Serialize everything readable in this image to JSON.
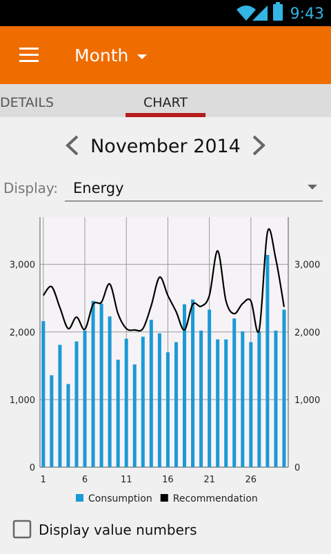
{
  "status_bar": {
    "time": "9:43"
  },
  "toolbar": {
    "title": "Month"
  },
  "tabs": [
    "DETAILS",
    "CHART"
  ],
  "period": "November 2014",
  "display": {
    "label": "Display:",
    "value": "Energy"
  },
  "checkbox": {
    "label": "Display value numbers"
  },
  "chart_data": {
    "type": "bar",
    "x": [
      1,
      2,
      3,
      4,
      5,
      6,
      7,
      8,
      9,
      10,
      11,
      12,
      13,
      14,
      15,
      16,
      17,
      18,
      19,
      20,
      21,
      22,
      23,
      24,
      25,
      26,
      27,
      28,
      29,
      30
    ],
    "series": [
      {
        "name": "Consumption",
        "type": "bar",
        "color": "#1a9ad6",
        "values": [
          2160,
          1360,
          1810,
          1230,
          1860,
          2020,
          2460,
          2420,
          2230,
          1590,
          1900,
          1520,
          1930,
          2180,
          1980,
          1700,
          1850,
          2410,
          2480,
          2020,
          2330,
          1890,
          1890,
          2200,
          2010,
          1850,
          2010,
          3140,
          2020,
          2330
        ]
      },
      {
        "name": "Recommendation",
        "type": "line",
        "color": "#000000",
        "values": [
          2540,
          2670,
          2360,
          2050,
          2220,
          2040,
          2410,
          2440,
          2710,
          2270,
          2050,
          2030,
          2050,
          2390,
          2810,
          2540,
          2300,
          2030,
          2410,
          2380,
          2540,
          3200,
          2460,
          2270,
          2420,
          2460,
          2030,
          3480,
          3080,
          2370
        ]
      }
    ],
    "xlim": [
      0.6,
      30.5
    ],
    "xticks": [
      1,
      6,
      11,
      16,
      21,
      26
    ],
    "ylim": [
      0,
      3700
    ],
    "yticks": [
      0,
      {
        "value": 1000,
        "label": "1,000"
      },
      {
        "value": 2000,
        "label": "2,000"
      },
      {
        "value": 3000,
        "label": "3,000"
      }
    ],
    "grid": true
  }
}
